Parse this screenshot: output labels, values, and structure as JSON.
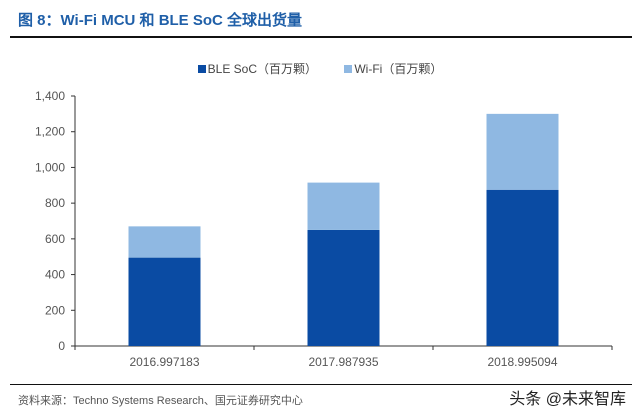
{
  "title": "图 8：Wi-Fi MCU 和 BLE SoC 全球出货量",
  "source": "资料来源：Techno Systems Research、国元证券研究中心",
  "watermark": "头条 @未来智库",
  "chart_data": {
    "type": "bar",
    "stacked": true,
    "categories": [
      "2016.997183",
      "2017.987935",
      "2018.995094"
    ],
    "series": [
      {
        "name": "BLE SoC（百万颗）",
        "values": [
          495,
          650,
          875
        ],
        "color": "#0a4ba3"
      },
      {
        "name": "Wi-Fi（百万颗）",
        "values": [
          175,
          265,
          425
        ],
        "color": "#8fb8e2"
      }
    ],
    "ylim": [
      0,
      1400
    ],
    "yticks": [
      "0",
      "200",
      "400",
      "600",
      "800",
      "1,000",
      "1,200",
      "1,400"
    ],
    "grid": false,
    "legend": "top"
  }
}
